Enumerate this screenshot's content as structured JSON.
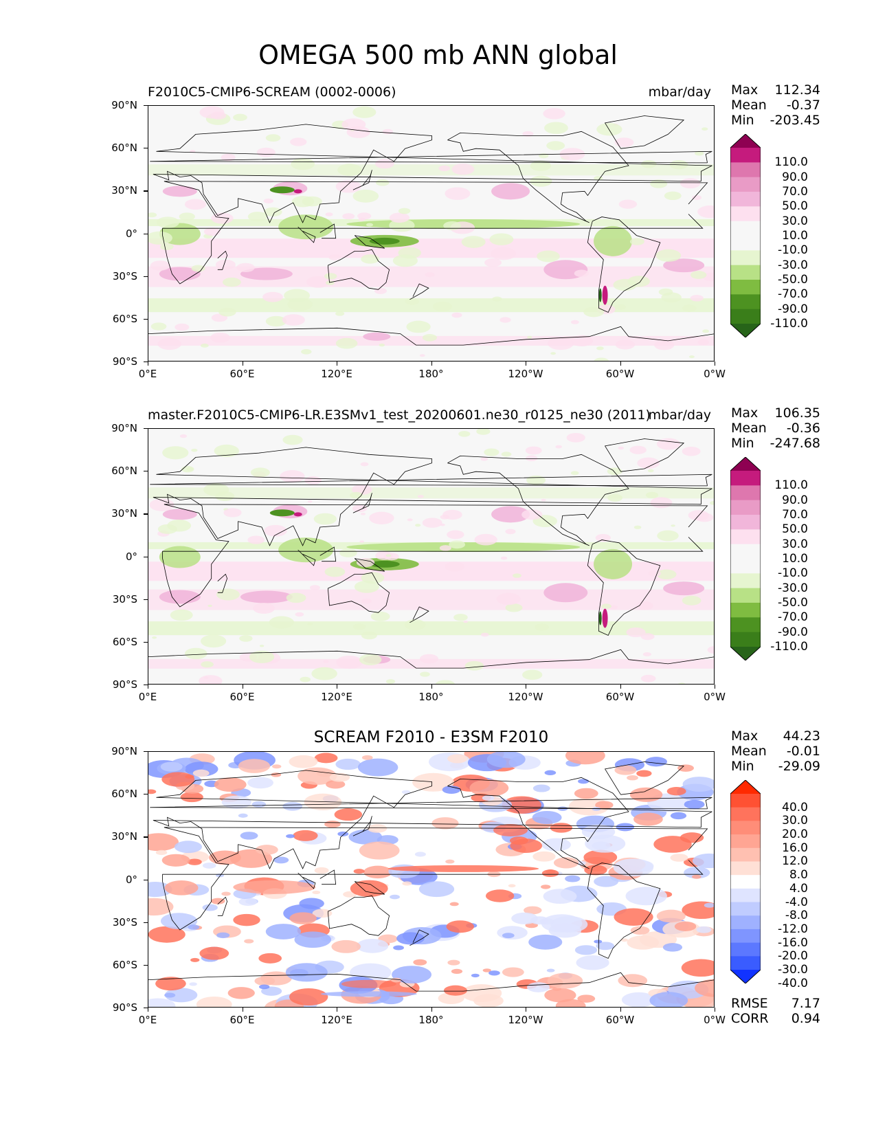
{
  "figure": {
    "title": "OMEGA 500 mb ANN global"
  },
  "axes": {
    "yticks": [
      "90°N",
      "60°N",
      "30°N",
      "0°",
      "30°S",
      "60°S",
      "90°S"
    ],
    "xticks": [
      "0°E",
      "60°E",
      "120°E",
      "180°",
      "120°W",
      "60°W",
      "0°W"
    ]
  },
  "panels": [
    {
      "title_left": "F2010C5-CMIP6-SCREAM (0002-0006)",
      "title_right": "mbar/day",
      "stats": {
        "max_label": "Max",
        "max": "112.34",
        "mean_label": "Mean",
        "mean": "-0.37",
        "min_label": "Min",
        "min": "-203.45"
      }
    },
    {
      "title_left": "master.F2010C5-CMIP6-LR.E3SMv1_test_20200601.ne30_r0125_ne30 (2011)",
      "title_right": "mbar/day",
      "stats": {
        "max_label": "Max",
        "max": "106.35",
        "mean_label": "Mean",
        "mean": "-0.36",
        "min_label": "Min",
        "min": "-247.68"
      }
    },
    {
      "title_center": "SCREAM F2010 - E3SM F2010",
      "stats": {
        "max_label": "Max",
        "max": "44.23",
        "mean_label": "Mean",
        "mean": "-0.01",
        "min_label": "Min",
        "min": "-29.09"
      },
      "metrics": {
        "rmse_label": "RMSE",
        "rmse": "7.17",
        "corr_label": "CORR",
        "corr": "0.94"
      }
    }
  ],
  "colorbars": {
    "field": {
      "labels": [
        "110.0",
        "90.0",
        "70.0",
        "50.0",
        "30.0",
        "10.0",
        "-10.0",
        "-30.0",
        "-50.0",
        "-70.0",
        "-90.0",
        "-110.0"
      ],
      "colors": [
        "#8e0152",
        "#c51b7d",
        "#de77ae",
        "#e99bc6",
        "#f1b6da",
        "#fde0ef",
        "#f7f7f7",
        "#f7f7f7",
        "#e6f5d0",
        "#b8e186",
        "#7fbc41",
        "#4d9221",
        "#3a7e1a",
        "#276419"
      ]
    },
    "diff": {
      "labels": [
        "40.0",
        "30.0",
        "20.0",
        "16.0",
        "12.0",
        "8.0",
        "4.0",
        "-4.0",
        "-8.0",
        "-12.0",
        "-16.0",
        "-20.0",
        "-30.0",
        "-40.0"
      ],
      "colors": [
        "#ff2a00",
        "#ff5133",
        "#ff735c",
        "#ff8d78",
        "#ffa593",
        "#ffc0b1",
        "#ffe0d6",
        "#ffffff",
        "#dfe4ff",
        "#c0ccff",
        "#9fb1ff",
        "#7f95ff",
        "#5c78ff",
        "#3a5cff",
        "#1133ff"
      ]
    }
  },
  "chart_data": [
    {
      "type": "heatmap",
      "title": "F2010C5-CMIP6-SCREAM (0002-0006)",
      "units": "mbar/day",
      "xlabel": "",
      "ylabel": "",
      "x_ticks": [
        "0°E",
        "60°E",
        "120°E",
        "180°",
        "120°W",
        "60°W",
        "0°W"
      ],
      "y_ticks": [
        "90°N",
        "60°N",
        "30°N",
        "0°",
        "30°S",
        "60°S",
        "90°S"
      ],
      "xlim": [
        0,
        360
      ],
      "ylim": [
        -90,
        90
      ],
      "levels": [
        -110,
        -90,
        -70,
        -50,
        -30,
        -10,
        10,
        30,
        50,
        70,
        90,
        110
      ],
      "max": 112.34,
      "mean": -0.37,
      "min": -203.45
    },
    {
      "type": "heatmap",
      "title": "master.F2010C5-CMIP6-LR.E3SMv1_test_20200601.ne30_r0125_ne30 (2011)",
      "units": "mbar/day",
      "xlabel": "",
      "ylabel": "",
      "x_ticks": [
        "0°E",
        "60°E",
        "120°E",
        "180°",
        "120°W",
        "60°W",
        "0°W"
      ],
      "y_ticks": [
        "90°N",
        "60°N",
        "30°N",
        "0°",
        "30°S",
        "60°S",
        "90°S"
      ],
      "xlim": [
        0,
        360
      ],
      "ylim": [
        -90,
        90
      ],
      "levels": [
        -110,
        -90,
        -70,
        -50,
        -30,
        -10,
        10,
        30,
        50,
        70,
        90,
        110
      ],
      "max": 106.35,
      "mean": -0.36,
      "min": -247.68
    },
    {
      "type": "heatmap",
      "title": "SCREAM F2010 - E3SM F2010",
      "xlabel": "",
      "ylabel": "",
      "x_ticks": [
        "0°E",
        "60°E",
        "120°E",
        "180°",
        "120°W",
        "60°W",
        "0°W"
      ],
      "y_ticks": [
        "90°N",
        "60°N",
        "30°N",
        "0°",
        "30°S",
        "60°S",
        "90°S"
      ],
      "xlim": [
        0,
        360
      ],
      "ylim": [
        -90,
        90
      ],
      "levels": [
        -40,
        -30,
        -20,
        -16,
        -12,
        -8,
        -4,
        4,
        8,
        12,
        16,
        20,
        30,
        40
      ],
      "max": 44.23,
      "mean": -0.01,
      "min": -29.09,
      "rmse": 7.17,
      "corr": 0.94
    }
  ]
}
